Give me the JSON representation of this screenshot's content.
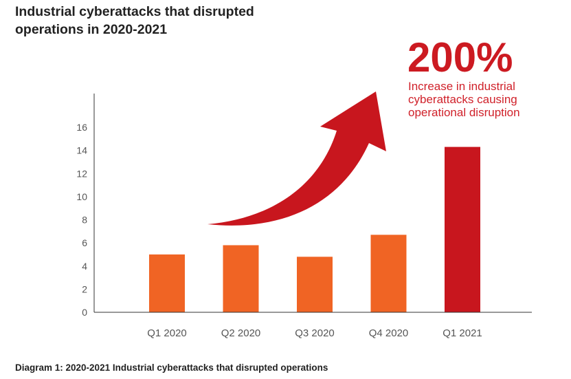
{
  "title_lines": [
    "Industrial cyberattacks that disrupted",
    "operations in 2020-2021"
  ],
  "stat": {
    "value": "200%",
    "description_lines": [
      "Increase in industrial",
      "cyberattacks causing",
      "operational disruption"
    ]
  },
  "caption": "Diagram 1: 2020-2021 Industrial cyberattacks that disrupted operations",
  "colors": {
    "bar_orange": "#f06424",
    "bar_red": "#c8161e",
    "arrow": "#c8161e",
    "text_red": "#cc1a21"
  },
  "chart_data": {
    "type": "bar",
    "title": "Industrial cyberattacks that disrupted operations in 2020-2021",
    "xlabel": "",
    "ylabel": "",
    "categories": [
      "Q1 2020",
      "Q2 2020",
      "Q3 2020",
      "Q4 2020",
      "Q1 2021"
    ],
    "values": [
      5,
      5.8,
      4.8,
      6.7,
      14.3
    ],
    "bar_colors": [
      "#f06424",
      "#f06424",
      "#f06424",
      "#f06424",
      "#c8161e"
    ],
    "yticks": [
      0,
      2,
      4,
      6,
      8,
      10,
      12,
      14,
      16
    ],
    "ylim": [
      0,
      16
    ],
    "grid": false,
    "legend": "none"
  }
}
